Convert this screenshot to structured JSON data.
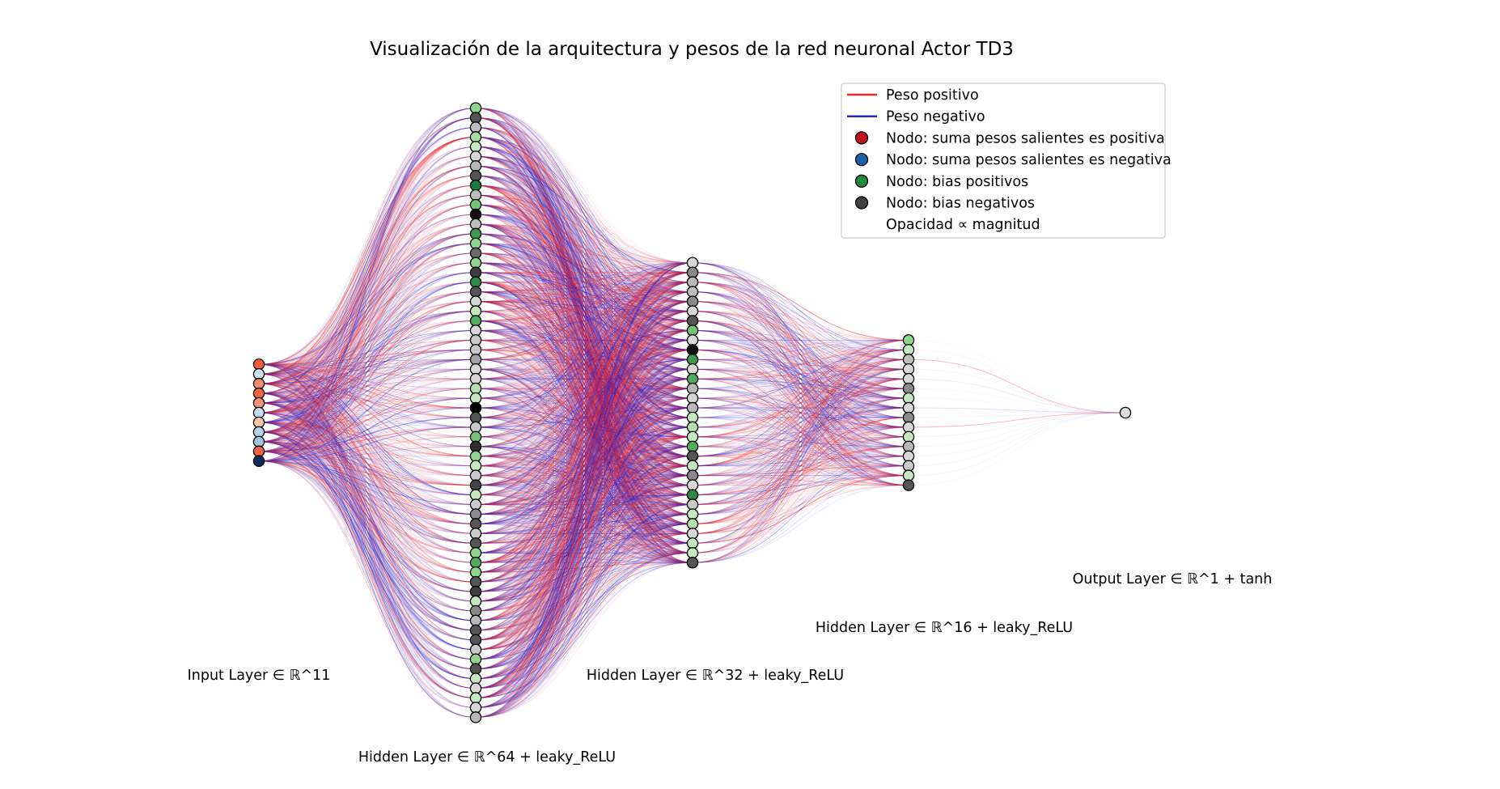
{
  "title": "Visualización de la arquitectura y pesos de la red neuronal Actor TD3",
  "layers": [
    {
      "label": "Input Layer ∈ ℝ^11",
      "size": 11,
      "node_colors": [
        "#ef5a3c",
        "#d0e0f2",
        "#f58c6c",
        "#f2633f",
        "#f79576",
        "#c7dcef",
        "#fcc4a8",
        "#b4d2ea",
        "#9fc5e3",
        "#ef6445",
        "#0f2d59"
      ]
    },
    {
      "label": "Hidden Layer ∈ ℝ^64 + leaky_ReLU",
      "size": 64,
      "node_colors": [
        "#8fd48b",
        "#555555",
        "#bdbdbd",
        "#a4dd9e",
        "#c5e8c0",
        "#d7d7d7",
        "#b8b8b8",
        "#555555",
        "#1a7a3a",
        "#bdbdbd",
        "#72c374",
        "#111111",
        "#bdbdbd",
        "#3d9a4f",
        "#8fd48b",
        "#6a6a6a",
        "#8fd48b",
        "#3d3d3d",
        "#2c8a45",
        "#555555",
        "#d7d7d7",
        "#c5e8c0",
        "#4fae5f",
        "#d7d7d7",
        "#c9c9c9",
        "#c9c9c9",
        "#a3a3a3",
        "#d7d7d7",
        "#d7d7d7",
        "#b4e0ad",
        "#c5e8c0",
        "#000000",
        "#555555",
        "#c9c9c9",
        "#72c374",
        "#2f2f2f",
        "#8fd48b",
        "#c5e8c0",
        "#c9c9c9",
        "#444444",
        "#c5e8c0",
        "#c9c9c9",
        "#8a8a8a",
        "#555555",
        "#c9c9c9",
        "#555555",
        "#8fd48b",
        "#4fae5f",
        "#8fd48b",
        "#555555",
        "#3d3d3d",
        "#c5e8c0",
        "#8a8a8a",
        "#b8b8b8",
        "#555555",
        "#555555",
        "#c9c9c9",
        "#8fd48b",
        "#555555",
        "#c5e8c0",
        "#d7d7d7",
        "#c5e8c0",
        "#d7d7d7",
        "#b8b8b8"
      ]
    },
    {
      "label": "Hidden Layer ∈ ℝ^32 + leaky_ReLU",
      "size": 32,
      "node_colors": [
        "#d7d7d7",
        "#8a8a8a",
        "#b8b8b8",
        "#bdbdbd",
        "#8a8a8a",
        "#d7d7d7",
        "#555555",
        "#72c374",
        "#d7d7d7",
        "#111111",
        "#3d9a4f",
        "#d7d7d7",
        "#4fae5f",
        "#b8b8b8",
        "#d7d7d7",
        "#b8b8b8",
        "#c5e8c0",
        "#b4e0ad",
        "#c5e8c0",
        "#4fae5f",
        "#555555",
        "#c5e8c0",
        "#8a8a8a",
        "#d7d7d7",
        "#2c8a45",
        "#c9c9c9",
        "#c5e8c0",
        "#b4e0ad",
        "#d7d7d7",
        "#c5e8c0",
        "#c5e8c0",
        "#555555"
      ]
    },
    {
      "label": "Hidden Layer ∈ ℝ^16 + leaky_ReLU",
      "size": 16,
      "node_colors": [
        "#8fd48b",
        "#c5e8c0",
        "#bdbdbd",
        "#d7d7d7",
        "#d7d7d7",
        "#8a8a8a",
        "#c5e8c0",
        "#d7d7d7",
        "#8a8a8a",
        "#d7d7d7",
        "#c5e8c0",
        "#b8b8b8",
        "#d7d7d7",
        "#c9c9c9",
        "#c5e8c0",
        "#555555"
      ]
    },
    {
      "label": "Output Layer ∈ ℝ^1 + tanh",
      "size": 1,
      "node_colors": [
        "#dddddd"
      ]
    }
  ],
  "legend": {
    "items": [
      {
        "kind": "line",
        "color": "#e8262b",
        "label": "Peso positivo"
      },
      {
        "kind": "line",
        "color": "#2424d4",
        "label": "Peso negativo"
      },
      {
        "kind": "dot",
        "color": "#c0141c",
        "label": "Nodo: suma pesos salientes es positiva"
      },
      {
        "kind": "dot",
        "color": "#1a5fa8",
        "label": "Nodo: suma pesos salientes es negativa"
      },
      {
        "kind": "dot",
        "color": "#1f8a3d",
        "label": "Nodo: bias positivos"
      },
      {
        "kind": "dot",
        "color": "#404040",
        "label": "Nodo: bias negativos"
      },
      {
        "kind": "none",
        "color": "",
        "label": "Opacidad ∝ magnitud"
      }
    ]
  },
  "colors": {
    "positive_weight": "#e8262b",
    "negative_weight": "#2424d4"
  }
}
